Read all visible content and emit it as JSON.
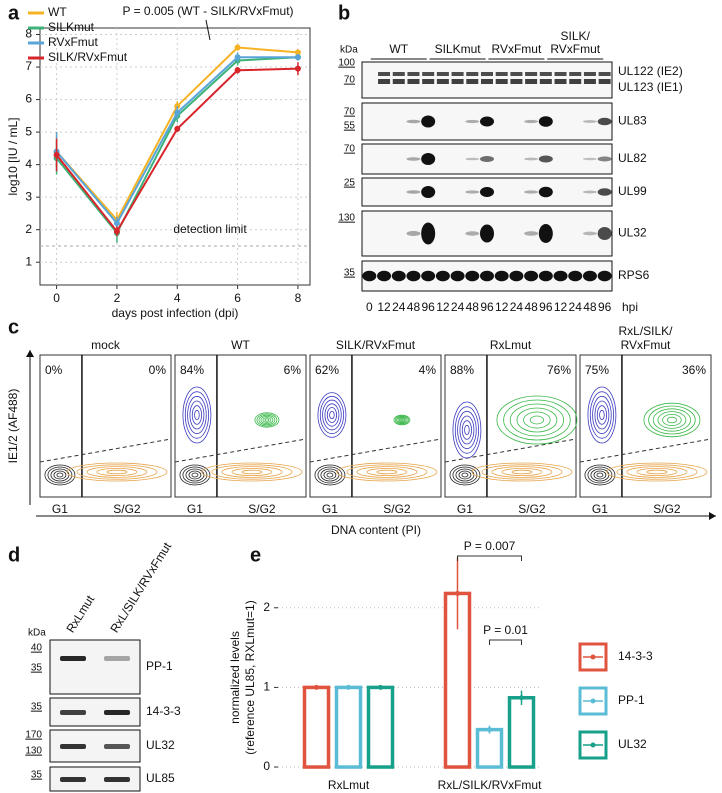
{
  "panel_labels": [
    "a",
    "b",
    "c",
    "d",
    "e"
  ],
  "chart_data": [
    {
      "type": "line",
      "x": [
        0,
        2,
        4,
        6,
        8
      ],
      "xlim": [
        -0.55,
        8.4
      ],
      "xticks": [
        0,
        2,
        4,
        6,
        8
      ],
      "ylim": [
        0.3,
        8.2
      ],
      "yticks": [
        1,
        2,
        3,
        4,
        5,
        6,
        7,
        8
      ],
      "grid": true,
      "legend": "top-left",
      "xlabel": "days post infection (dpi)",
      "ylabel": "log10 [IU / mL]",
      "series": [
        {
          "name": "WT",
          "color": "#f5b324",
          "values": [
            4.4,
            2.3,
            5.8,
            7.6,
            7.45
          ],
          "errors": [
            0.6,
            0.25,
            0.15,
            0.1,
            0.05
          ]
        },
        {
          "name": "SILKmut",
          "color": "#3db37a",
          "values": [
            4.2,
            1.9,
            5.5,
            7.2,
            7.3
          ],
          "errors": [
            0.5,
            0.3,
            0.2,
            0.15,
            0.1
          ]
        },
        {
          "name": "RVxFmut",
          "color": "#5aa5d8",
          "values": [
            4.4,
            2.2,
            5.6,
            7.3,
            7.3
          ],
          "errors": [
            0.6,
            0.2,
            0.2,
            0.15,
            0.1
          ]
        },
        {
          "name": "SILK/RVxFmut",
          "color": "#d7262b",
          "values": [
            4.3,
            1.95,
            5.1,
            6.9,
            6.95
          ],
          "errors": [
            0.5,
            0.15,
            0.1,
            0.1,
            0.2
          ]
        }
      ],
      "annotations": [
        {
          "text": "P = 0.005 (WT - SILK/RVxFmut)"
        },
        {
          "text": "detection limit",
          "value": 1.5
        }
      ]
    },
    {
      "type": "bar",
      "categories": [
        "RxLmut",
        "RxL/SILK/RVxFmut"
      ],
      "ylim": [
        -0.1,
        2.6
      ],
      "yticks": [
        0,
        1,
        2
      ],
      "grid": true,
      "legend": "right",
      "ylabel": [
        "normalized levels",
        "(reference UL85, RXLmut=1)"
      ],
      "series": [
        {
          "name": "14-3-3",
          "color": "#e0533f",
          "values": [
            1,
            2.18
          ],
          "errors": [
            0,
            0.45
          ]
        },
        {
          "name": "PP-1",
          "color": "#5bbcd6",
          "values": [
            1,
            0.47
          ],
          "errors": [
            0,
            0.05
          ]
        },
        {
          "name": "UL32",
          "color": "#17a08a",
          "values": [
            1,
            0.87
          ],
          "errors": [
            0,
            0.09
          ]
        }
      ],
      "annotations": [
        {
          "text": "P = 0.007"
        },
        {
          "text": "P = 0.01"
        }
      ]
    }
  ],
  "blot_b": {
    "kda": "kDa",
    "groups": [
      [
        "WT"
      ],
      [
        "SILKmut"
      ],
      [
        "RVxFmut"
      ],
      [
        "SILK/",
        "RVxFmut"
      ]
    ],
    "rows": [
      {
        "markers": [
          "100",
          "70"
        ],
        "labels": [
          "UL122 (IE2)",
          "UL123 (IE1)"
        ]
      },
      {
        "markers": [
          "70",
          "55"
        ],
        "labels": [
          "UL83"
        ]
      },
      {
        "markers": [
          "70"
        ],
        "labels": [
          "UL82"
        ]
      },
      {
        "markers": [
          "25"
        ],
        "labels": [
          "UL99"
        ]
      },
      {
        "markers": [
          "130"
        ],
        "labels": [
          "UL32"
        ]
      },
      {
        "markers": [
          "35"
        ],
        "labels": [
          "RPS6"
        ]
      }
    ],
    "lanes": [
      "0",
      "12",
      "24",
      "48",
      "96",
      "12",
      "24",
      "48",
      "96",
      "12",
      "24",
      "48",
      "96",
      "12",
      "24",
      "48",
      "96"
    ],
    "unit": "hpi"
  },
  "flow_c": {
    "ylabel": "IE1/2 (AF488)",
    "xlabel": "DNA content (PI)",
    "plots": [
      {
        "title": [
          "mock"
        ],
        "left": "0%",
        "right": "0%",
        "gates": [
          "G1",
          "S/G2"
        ]
      },
      {
        "title": [
          "WT"
        ],
        "left": "84%",
        "right": "6%",
        "gates": [
          "G1",
          "S/G2"
        ]
      },
      {
        "title": [
          "SILK/RVxFmut"
        ],
        "left": "62%",
        "right": "4%",
        "gates": [
          "G1",
          "S/G2"
        ]
      },
      {
        "title": [
          "RxLmut"
        ],
        "left": "88%",
        "right": "76%",
        "gates": [
          "G1",
          "S/G2"
        ]
      },
      {
        "title": [
          "RxL/SILK/",
          "RVxFmut"
        ],
        "left": "75%",
        "right": "36%",
        "gates": [
          "G1",
          "S/G2"
        ]
      }
    ]
  },
  "blot_d": {
    "kda": "kDa",
    "lanes": [
      "RxLmut",
      "RxL/SILK/RVxFmut"
    ],
    "rows": [
      {
        "markers": [
          "40",
          "35"
        ],
        "label": "PP-1"
      },
      {
        "markers": [
          "35"
        ],
        "label": "14-3-3"
      },
      {
        "markers": [
          "170",
          "130"
        ],
        "label": "UL32"
      },
      {
        "markers": [
          "35"
        ],
        "label": "UL85"
      }
    ]
  }
}
